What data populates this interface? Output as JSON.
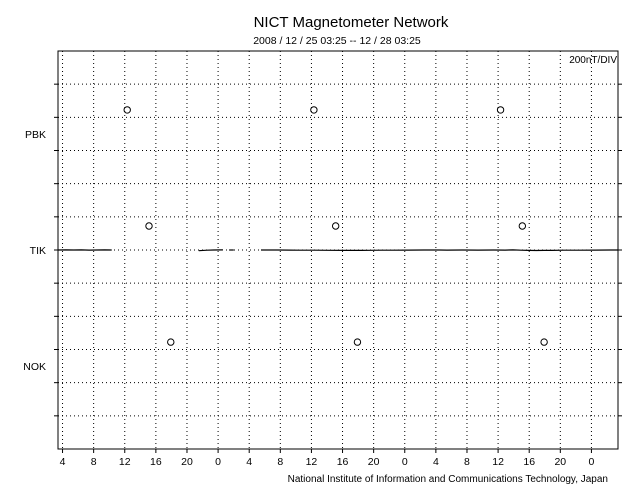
{
  "chart_data": {
    "type": "line",
    "title": "NICT Magnetometer Network",
    "subtitle": "2008 / 12 / 25   03:25 -- 12 / 28   03:25",
    "scale_label": "200nT/DIV",
    "footer": "National Institute of Information and Communications Technology, Japan",
    "stations": [
      "PBK",
      "TIK",
      "NOK"
    ],
    "x_range_hours": [
      0,
      72
    ],
    "x_tick_labels": [
      "4",
      "8",
      "12",
      "16",
      "20",
      "0",
      "4",
      "8",
      "12",
      "16",
      "20",
      "0",
      "4",
      "8",
      "12",
      "16",
      "20",
      "0"
    ],
    "x_ticks_start_hour": 0.5833,
    "x_tick_step_hours": 4,
    "grid": true,
    "y_divisions": 12,
    "markers": [
      {
        "station": "PBK",
        "hours": [
          8.9,
          32.9,
          56.9
        ]
      },
      {
        "station": "TIK",
        "hours": [
          11.7,
          35.7,
          59.7
        ]
      },
      {
        "station": "NOK",
        "hours": [
          14.5,
          38.5,
          62.5
        ]
      }
    ],
    "series": [
      {
        "name": "TIK",
        "points": [
          [
            0,
            0
          ],
          [
            1,
            -0.5
          ],
          [
            2,
            0
          ],
          [
            3,
            -0.5
          ],
          [
            4,
            0.5
          ],
          [
            5,
            0
          ],
          [
            6,
            -0.5
          ],
          [
            6.9,
            0
          ],
          null,
          [
            18.1,
            4
          ],
          [
            19.2,
            1
          ],
          [
            20,
            0
          ],
          [
            21.2,
            -0.5
          ],
          null,
          [
            22,
            0
          ],
          [
            22.6,
            0
          ],
          null,
          [
            26.1,
            0
          ],
          [
            28.2,
            0
          ],
          [
            29.8,
            0.5
          ],
          [
            31,
            1
          ],
          [
            33,
            1.5
          ],
          [
            35,
            2
          ],
          [
            37,
            2.5
          ],
          [
            39,
            2.5
          ],
          [
            40,
            2
          ],
          [
            41.5,
            1.5
          ],
          [
            43,
            1
          ],
          [
            45,
            0.5
          ],
          [
            47,
            0
          ],
          [
            49,
            0
          ],
          [
            50,
            0.5
          ],
          [
            52,
            0
          ],
          [
            54,
            0.5
          ],
          [
            56,
            0
          ],
          [
            57.5,
            0.5
          ],
          [
            58.5,
            -0.5
          ],
          [
            59.5,
            1
          ],
          [
            60.5,
            2.5
          ],
          [
            61.5,
            3
          ],
          [
            62.5,
            2.5
          ],
          [
            63.5,
            2.5
          ],
          [
            65,
            1.5
          ],
          [
            67,
            1
          ],
          [
            69,
            0.5
          ],
          [
            71,
            0
          ],
          [
            72,
            0
          ]
        ]
      }
    ]
  }
}
